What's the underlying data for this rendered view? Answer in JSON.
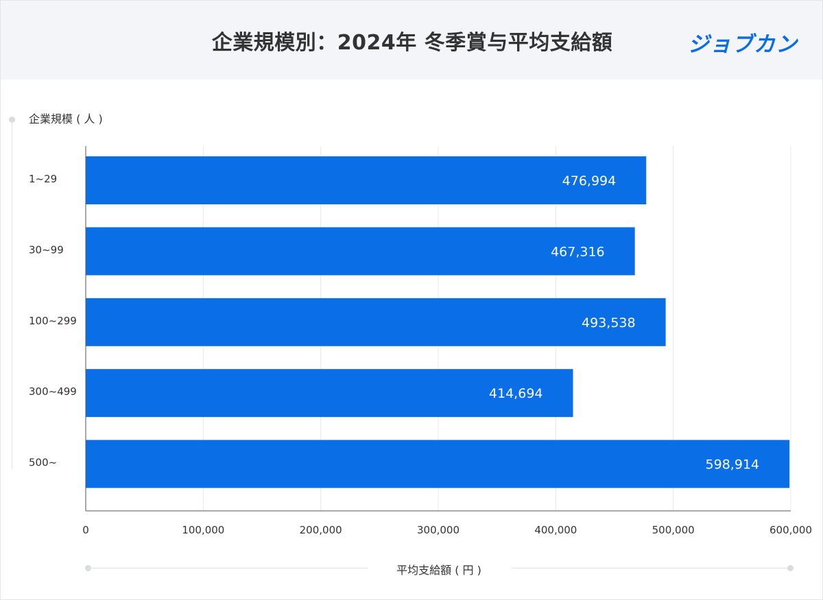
{
  "header": {
    "title": "企業規模別：2024年 冬季賞与平均支給額",
    "logo_text": "ジョブカン"
  },
  "colors": {
    "bar": "#0a6fe6",
    "grid": "#e6e8eb",
    "axis": "#555555",
    "header_bg": "#f3f5f8",
    "logo": "#0a6fe6"
  },
  "chart_data": {
    "type": "bar",
    "orientation": "horizontal",
    "title": "企業規模別：2024年 冬季賞与平均支給額",
    "ylabel": "企業規模 ( 人 )",
    "xlabel": "平均支給額 ( 円 )",
    "categories": [
      "1~29",
      "30~99",
      "100~299",
      "300~499",
      "500~"
    ],
    "values": [
      476994,
      467316,
      493538,
      414694,
      598914
    ],
    "value_labels": [
      "476,994",
      "467,316",
      "493,538",
      "414,694",
      "598,914"
    ],
    "xlim": [
      0,
      600000
    ],
    "xticks": [
      0,
      100000,
      200000,
      300000,
      400000,
      500000,
      600000
    ],
    "xtick_labels": [
      "0",
      "100,000",
      "200,000",
      "300,000",
      "400,000",
      "500,000",
      "600,000"
    ],
    "grid": true,
    "legend": "none"
  }
}
